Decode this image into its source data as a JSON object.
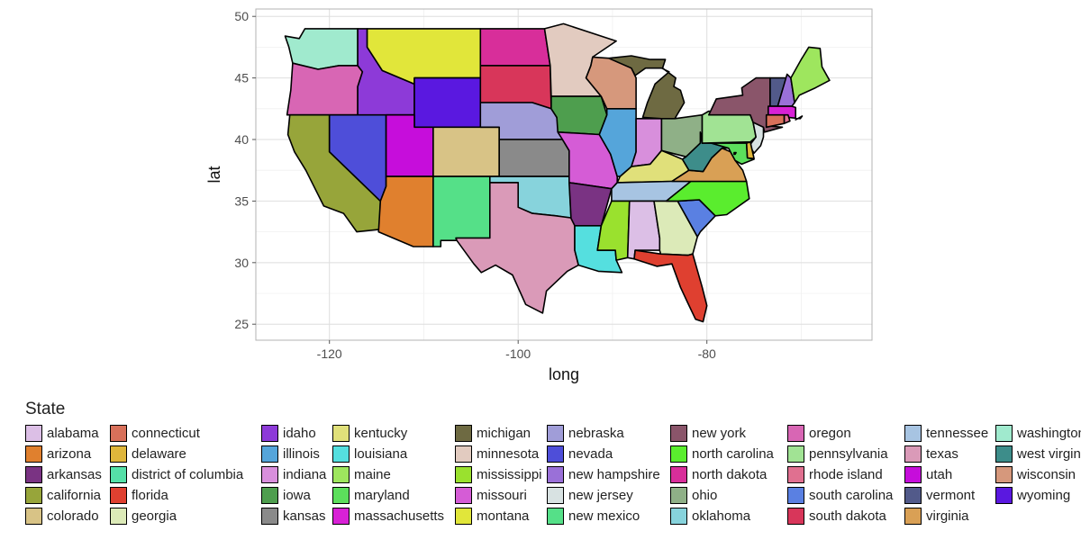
{
  "chart_data": {
    "type": "map",
    "xlabel": "long",
    "ylabel": "lat",
    "xlim": [
      -127.8,
      -62.5
    ],
    "ylim": [
      23.7,
      50.6
    ],
    "x_ticks": [
      -120,
      -100,
      -80
    ],
    "y_ticks": [
      25,
      30,
      35,
      40,
      45,
      50
    ],
    "grid": true,
    "legend": {
      "title": "State",
      "position": "bottom"
    },
    "states": [
      {
        "name": "alabama",
        "color": "#dcbfe6"
      },
      {
        "name": "arizona",
        "color": "#e0802e"
      },
      {
        "name": "arkansas",
        "color": "#7a3383"
      },
      {
        "name": "california",
        "color": "#97a53a"
      },
      {
        "name": "colorado",
        "color": "#d8c386"
      },
      {
        "name": "connecticut",
        "color": "#d8705a"
      },
      {
        "name": "delaware",
        "color": "#dfb63b"
      },
      {
        "name": "district of columbia",
        "color": "#55e0a8"
      },
      {
        "name": "florida",
        "color": "#df4030"
      },
      {
        "name": "georgia",
        "color": "#dceab8"
      },
      {
        "name": "idaho",
        "color": "#8d3ad8"
      },
      {
        "name": "illinois",
        "color": "#55a5da"
      },
      {
        "name": "indiana",
        "color": "#d88fdc"
      },
      {
        "name": "iowa",
        "color": "#4e9e4e"
      },
      {
        "name": "kansas",
        "color": "#8a8a8a"
      },
      {
        "name": "kentucky",
        "color": "#e0e07a"
      },
      {
        "name": "louisiana",
        "color": "#55dfdf"
      },
      {
        "name": "maine",
        "color": "#9ee65e"
      },
      {
        "name": "maryland",
        "color": "#5cdf5c"
      },
      {
        "name": "massachusetts",
        "color": "#d821d6"
      },
      {
        "name": "michigan",
        "color": "#6e6a42"
      },
      {
        "name": "minnesota",
        "color": "#e2cbc0"
      },
      {
        "name": "mississippi",
        "color": "#9ae12e"
      },
      {
        "name": "missouri",
        "color": "#d55cd6"
      },
      {
        "name": "montana",
        "color": "#e1e63a"
      },
      {
        "name": "nebraska",
        "color": "#a09dd8"
      },
      {
        "name": "nevada",
        "color": "#4e4ed9"
      },
      {
        "name": "new hampshire",
        "color": "#9a70d8"
      },
      {
        "name": "new jersey",
        "color": "#d8e2e2"
      },
      {
        "name": "new mexico",
        "color": "#55e088"
      },
      {
        "name": "new york",
        "color": "#8a556a"
      },
      {
        "name": "north carolina",
        "color": "#5aed2e"
      },
      {
        "name": "north dakota",
        "color": "#d82e9a"
      },
      {
        "name": "ohio",
        "color": "#8fb087"
      },
      {
        "name": "oklahoma",
        "color": "#87d3dc"
      },
      {
        "name": "oregon",
        "color": "#d866b4"
      },
      {
        "name": "pennsylvania",
        "color": "#a1e394"
      },
      {
        "name": "rhode island",
        "color": "#e07090"
      },
      {
        "name": "south carolina",
        "color": "#5a80e2"
      },
      {
        "name": "south dakota",
        "color": "#d8365a"
      },
      {
        "name": "tennessee",
        "color": "#a7c4e2"
      },
      {
        "name": "texas",
        "color": "#da9ab8"
      },
      {
        "name": "utah",
        "color": "#c60ddb"
      },
      {
        "name": "vermont",
        "color": "#525a8a"
      },
      {
        "name": "virginia",
        "color": "#d9a055"
      },
      {
        "name": "washington",
        "color": "#a0eace"
      },
      {
        "name": "west virginia",
        "color": "#3d8d8a"
      },
      {
        "name": "wisconsin",
        "color": "#d6987c"
      },
      {
        "name": "wyoming",
        "color": "#5a18e0"
      }
    ]
  }
}
